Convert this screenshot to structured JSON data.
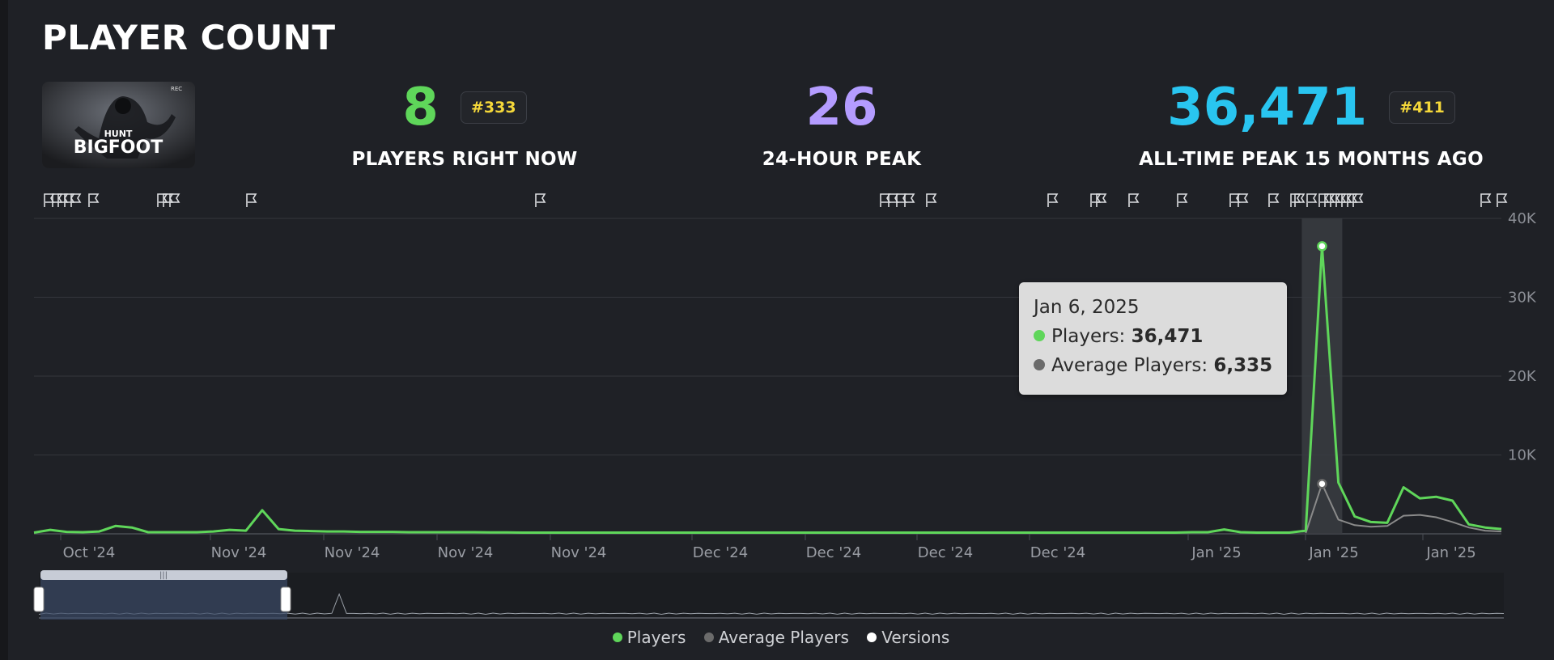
{
  "header": {
    "title": "PLAYER COUNT"
  },
  "game": {
    "thumbnail_text_top": "HUNT",
    "thumbnail_text_main": "BIGFOOT",
    "thumbnail_badge": "REC"
  },
  "stats": {
    "current": {
      "value": "8",
      "rank": "#333",
      "label": "PLAYERS RIGHT NOW",
      "color": "#5fd65a"
    },
    "peak24": {
      "value": "26",
      "label": "24-HOUR PEAK",
      "color": "#b49cff"
    },
    "alltime": {
      "value": "36,471",
      "rank": "#411",
      "label": "ALL-TIME PEAK 15 MONTHS AGO",
      "color": "#29c5f0"
    }
  },
  "tooltip": {
    "date": "Jan 6, 2025",
    "players_label": "Players: ",
    "players_value": "36,471",
    "avg_label": "Average Players: ",
    "avg_value": "6,335"
  },
  "legend": {
    "players": "Players",
    "average": "Average Players",
    "versions": "Versions"
  },
  "colors": {
    "players": "#5fd65a",
    "average": "#8a8a8a",
    "versions": "#ffffff",
    "grid": "#34363c"
  },
  "chart_data": {
    "type": "line",
    "y_ticks": [
      "40K",
      "30K",
      "20K",
      "10K"
    ],
    "ylim": [
      0,
      40000
    ],
    "x_tick_labels": [
      "Oct '24",
      "Nov '24",
      "Nov '24",
      "Nov '24",
      "Nov '24",
      "Dec '24",
      "Dec '24",
      "Dec '24",
      "Dec '24",
      "Jan '25",
      "Jan '25",
      "Jan '25"
    ],
    "series": [
      {
        "name": "Players",
        "values": [
          150,
          500,
          250,
          200,
          300,
          1000,
          800,
          200,
          200,
          200,
          200,
          300,
          500,
          400,
          3000,
          600,
          400,
          350,
          300,
          300,
          250,
          250,
          250,
          200,
          200,
          200,
          200,
          200,
          180,
          180,
          150,
          150,
          150,
          150,
          150,
          150,
          150,
          150,
          150,
          150,
          150,
          150,
          150,
          150,
          150,
          150,
          150,
          150,
          150,
          150,
          150,
          150,
          150,
          150,
          150,
          150,
          150,
          150,
          150,
          150,
          150,
          150,
          150,
          150,
          150,
          150,
          150,
          150,
          150,
          150,
          150,
          200,
          200,
          550,
          200,
          150,
          150,
          150,
          400,
          36471,
          6500,
          2200,
          1500,
          1400,
          5900,
          4500,
          4700,
          4200,
          1200,
          800,
          600
        ]
      },
      {
        "name": "Average Players",
        "values": [
          null,
          null,
          null,
          null,
          null,
          null,
          null,
          null,
          null,
          null,
          null,
          null,
          null,
          null,
          null,
          null,
          null,
          null,
          null,
          null,
          null,
          null,
          null,
          null,
          null,
          null,
          null,
          null,
          null,
          null,
          null,
          null,
          null,
          null,
          null,
          null,
          null,
          null,
          null,
          null,
          null,
          null,
          null,
          null,
          null,
          null,
          null,
          null,
          null,
          null,
          null,
          null,
          null,
          null,
          null,
          null,
          null,
          null,
          null,
          null,
          null,
          null,
          null,
          null,
          null,
          null,
          null,
          null,
          null,
          null,
          null,
          null,
          null,
          null,
          null,
          null,
          null,
          null,
          100,
          6335,
          1800,
          1100,
          900,
          1000,
          2300,
          2400,
          2100,
          1500,
          800,
          400,
          300
        ]
      }
    ],
    "highlight_index": 79,
    "version_flag_count": 36
  }
}
